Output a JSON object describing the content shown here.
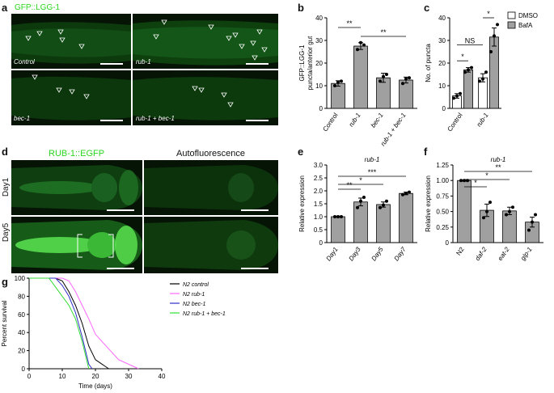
{
  "letters": {
    "a": "a",
    "b": "b",
    "c": "c",
    "d": "d",
    "e": "e",
    "f": "f",
    "g": "g"
  },
  "panel_a": {
    "title": "GFP::LGG-1",
    "labels": [
      "Control",
      "rub-1",
      "bec-1",
      "rub-1 + bec-1"
    ]
  },
  "panel_d": {
    "col1": "RUB-1::EGFP",
    "col2": "Autofluorescence",
    "row1": "Day1",
    "row2": "Day5"
  },
  "colors": {
    "green": "#2bd61e",
    "bar_gray": "#a0a0a0",
    "control": "#000000",
    "rub1": "#ff66ff",
    "bec1": "#2f2fc8",
    "combo": "#33dd33"
  },
  "chart_data": [
    {
      "id": "b",
      "type": "bar",
      "ylabel": "GFP::LGG-1\npuncta/anterior gut",
      "ylabel_lines": [
        "GFP::LGG-1",
        "puncta/anterior gut"
      ],
      "categories": [
        "Control",
        "rub-1",
        "bec-1",
        "rub-1 + bec-1"
      ],
      "values": [
        11,
        27.5,
        13.5,
        12.5
      ],
      "errors": [
        1.2,
        1.5,
        2,
        1.3
      ],
      "points": [
        [
          10,
          11.5,
          12
        ],
        [
          26,
          29,
          28
        ],
        [
          12,
          14,
          15
        ],
        [
          11,
          13,
          13.5
        ]
      ],
      "yticks": [
        "0",
        "10",
        "20",
        "30",
        "40"
      ],
      "ylim": [
        0,
        40
      ],
      "significance": [
        {
          "label": "**"
        },
        {
          "label": "**"
        }
      ]
    },
    {
      "id": "c",
      "type": "bar",
      "ylabel": "No. of puncta",
      "categories": [
        "Control",
        "rub-1"
      ],
      "series": [
        {
          "name": "DMSO",
          "values": [
            5.5,
            13.5
          ],
          "errors": [
            1,
            1.8
          ],
          "points": [
            [
              4.5,
              5.5,
              6.5
            ],
            [
              12,
              13,
              16
            ]
          ]
        },
        {
          "name": "BafA",
          "values": [
            17,
            31.5
          ],
          "errors": [
            1,
            4
          ],
          "points": [
            [
              16,
              17,
              18
            ],
            [
              25,
              32,
              37
            ]
          ]
        }
      ],
      "yticks": [
        "0",
        "10",
        "20",
        "30",
        "40"
      ],
      "ylim": [
        0,
        40
      ],
      "significance": [
        {
          "label": "*"
        },
        {
          "label": "NS"
        },
        {
          "label": "*"
        }
      ]
    },
    {
      "id": "e",
      "type": "bar",
      "title": "rub-1",
      "ylabel": "Relative expression",
      "categories": [
        "Day1",
        "Day3",
        "Day5",
        "Day7"
      ],
      "values": [
        1.0,
        1.57,
        1.47,
        1.9
      ],
      "errors": [
        0.02,
        0.15,
        0.1,
        0.05
      ],
      "points": [
        [
          1,
          1,
          1
        ],
        [
          1.35,
          1.6,
          1.75
        ],
        [
          1.35,
          1.45,
          1.6
        ],
        [
          1.85,
          1.9,
          1.95
        ]
      ],
      "yticks": [
        "0",
        "0.5",
        "1.0",
        "1.5",
        "2.0",
        "2.5",
        "3.0"
      ],
      "ylim": [
        0,
        3.0
      ],
      "significance": [
        {
          "label": "**"
        },
        {
          "label": "*"
        },
        {
          "label": "***"
        }
      ]
    },
    {
      "id": "f",
      "type": "bar",
      "title": "rub-1",
      "ylabel": "Relative expression",
      "categories": [
        "N2",
        "daf-2",
        "eat-2",
        "glp-1"
      ],
      "values": [
        1.0,
        0.52,
        0.51,
        0.33
      ],
      "errors": [
        0.01,
        0.1,
        0.06,
        0.08
      ],
      "points": [
        [
          1,
          1,
          1
        ],
        [
          0.4,
          0.5,
          0.65
        ],
        [
          0.45,
          0.5,
          0.57
        ],
        [
          0.2,
          0.33,
          0.45
        ]
      ],
      "yticks": [
        "0",
        "0.25",
        "0.50",
        "0.75",
        "1.00",
        "1.25"
      ],
      "ylim": [
        0,
        1.25
      ],
      "significance": [
        {
          "label": "*"
        },
        {
          "label": "*"
        },
        {
          "label": "**"
        }
      ]
    },
    {
      "id": "g",
      "type": "line",
      "xlabel": "Time (days)",
      "ylabel": "Percent survival",
      "xticks": [
        "0",
        "10",
        "20",
        "30",
        "40"
      ],
      "yticks": [
        "0",
        "20",
        "40",
        "60",
        "80",
        "100"
      ],
      "xlim": [
        0,
        40
      ],
      "ylim": [
        0,
        100
      ],
      "series": [
        {
          "name": "N2 control",
          "color": "#000000",
          "points": [
            [
              0,
              100
            ],
            [
              8,
              100
            ],
            [
              10,
              97
            ],
            [
              12,
              85
            ],
            [
              14,
              70
            ],
            [
              16,
              50
            ],
            [
              18,
              25
            ],
            [
              20,
              10
            ],
            [
              24,
              0
            ]
          ]
        },
        {
          "name": "N2 rub-1",
          "color": "#ff66ff",
          "points": [
            [
              0,
              100
            ],
            [
              10,
              100
            ],
            [
              12,
              97
            ],
            [
              14,
              85
            ],
            [
              16,
              70
            ],
            [
              18,
              55
            ],
            [
              20,
              38
            ],
            [
              24,
              22
            ],
            [
              27,
              10
            ],
            [
              33,
              0
            ]
          ]
        },
        {
          "name": "N2 bec-1",
          "color": "#2f2fc8",
          "points": [
            [
              0,
              100
            ],
            [
              8,
              100
            ],
            [
              10,
              92
            ],
            [
              12,
              80
            ],
            [
              14,
              62
            ],
            [
              16,
              35
            ],
            [
              18,
              5
            ],
            [
              19,
              0
            ]
          ]
        },
        {
          "name": "N2 rub-1 + bec-1",
          "color": "#33dd33",
          "points": [
            [
              0,
              100
            ],
            [
              6,
              100
            ],
            [
              8,
              90
            ],
            [
              10,
              80
            ],
            [
              12,
              70
            ],
            [
              14,
              55
            ],
            [
              16,
              30
            ],
            [
              18,
              0
            ]
          ]
        }
      ]
    }
  ]
}
